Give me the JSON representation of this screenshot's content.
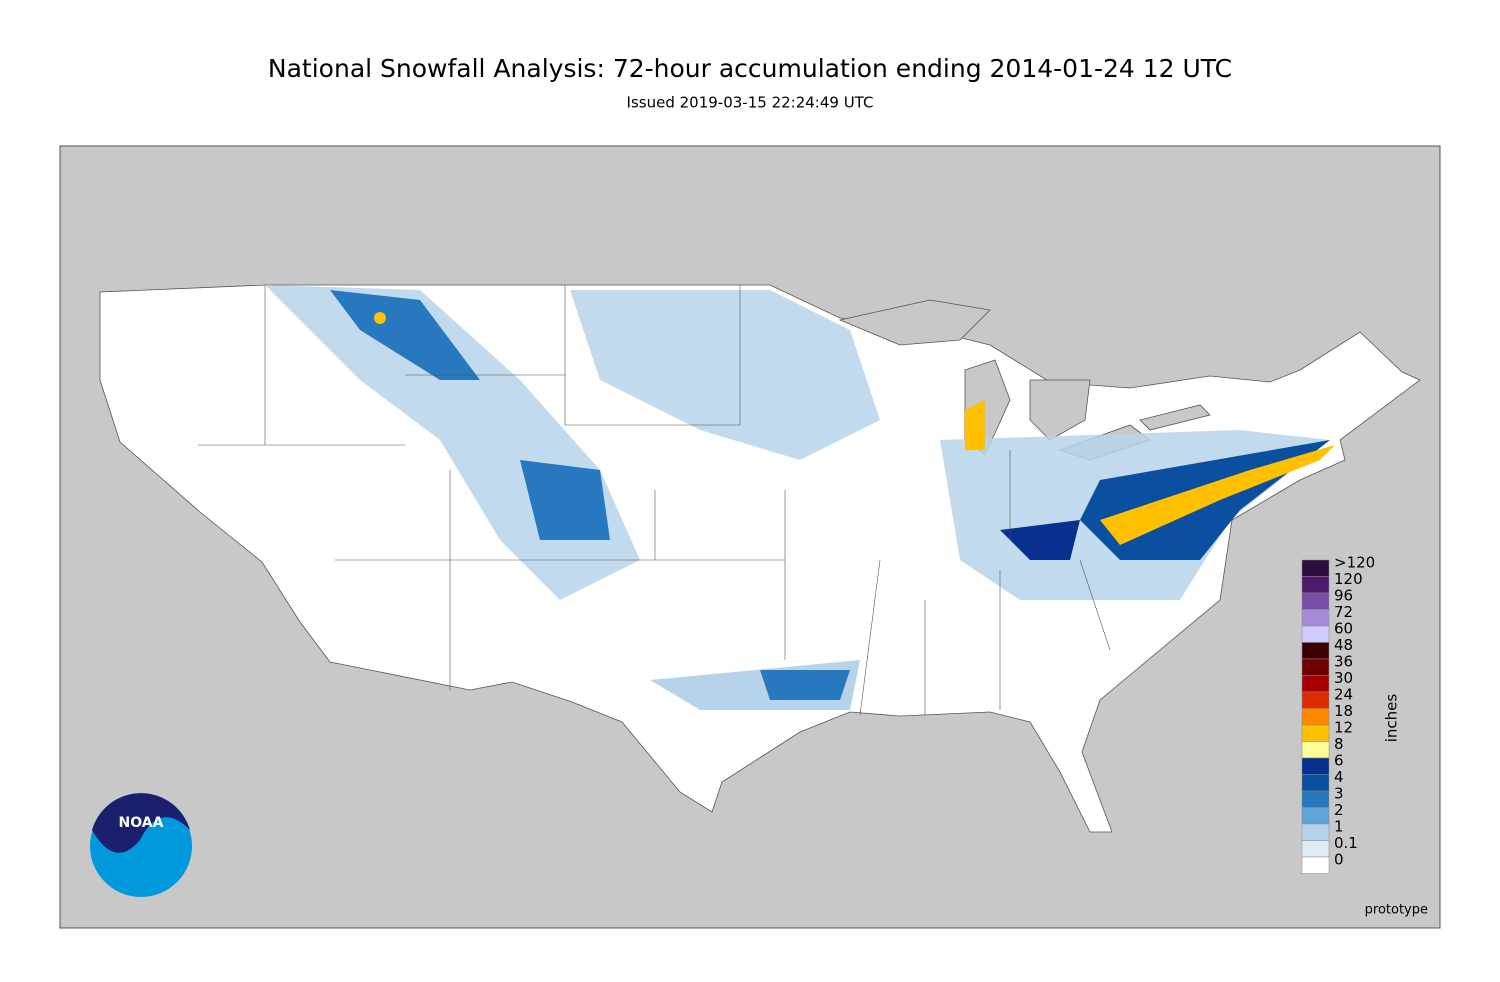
{
  "title": "National Snowfall Analysis: 72-hour accumulation ending 2014-01-24 12 UTC",
  "subtitle": "Issued 2019-03-15 22:24:49 UTC",
  "legend": {
    "unit": "inches",
    "bins": [
      {
        "label": ">120",
        "color": "#2c0b3f"
      },
      {
        "label": "120",
        "color": "#4d1a6e"
      },
      {
        "label": "96",
        "color": "#7a4ea8"
      },
      {
        "label": "72",
        "color": "#a88bd8"
      },
      {
        "label": "60",
        "color": "#cfcaff"
      },
      {
        "label": "48",
        "color": "#3a0000"
      },
      {
        "label": "36",
        "color": "#700000"
      },
      {
        "label": "30",
        "color": "#a80000"
      },
      {
        "label": "24",
        "color": "#dd2b00"
      },
      {
        "label": "18",
        "color": "#ff8800"
      },
      {
        "label": "12",
        "color": "#ffc000"
      },
      {
        "label": "8",
        "color": "#ffff99"
      },
      {
        "label": "6",
        "color": "#08308f"
      },
      {
        "label": "4",
        "color": "#0a4fa0"
      },
      {
        "label": "3",
        "color": "#2878c0"
      },
      {
        "label": "2",
        "color": "#5ea5d8"
      },
      {
        "label": "1",
        "color": "#b7d3ea"
      },
      {
        "label": "0.1",
        "color": "#e1ebf5"
      },
      {
        "label": "0",
        "color": "#ffffff"
      }
    ]
  },
  "footer": "prototype",
  "logo": "NOAA"
}
